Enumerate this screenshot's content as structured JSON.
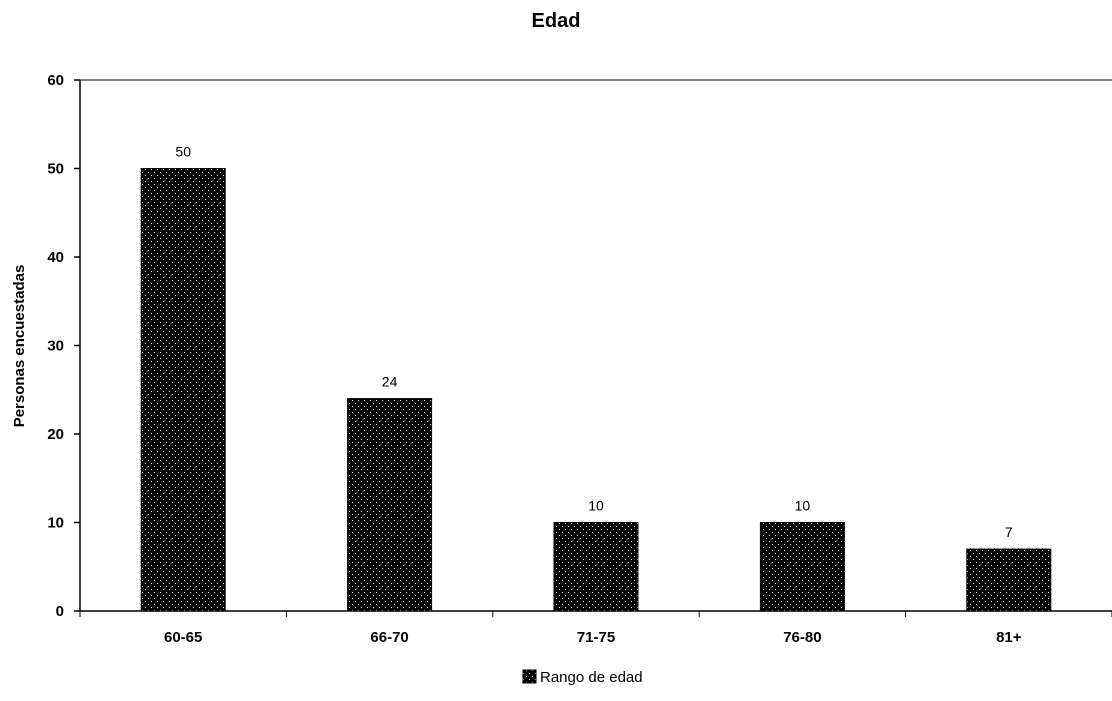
{
  "chart_data": {
    "type": "bar",
    "title": "Edad",
    "xlabel": "",
    "ylabel": "Personas encuestadas",
    "categories": [
      "60-65",
      "66-70",
      "71-75",
      "76-80",
      "81+"
    ],
    "series": [
      {
        "name": "Rango de edad",
        "values": [
          50,
          24,
          10,
          10,
          7
        ]
      }
    ],
    "ylim": [
      0,
      60
    ],
    "yticks": [
      0,
      10,
      20,
      30,
      40,
      50,
      60
    ],
    "grid": false,
    "legend_position": "bottom",
    "colors": {
      "bar_fill": "#000000",
      "bar_dots": "#ffffff",
      "axis": "#000000"
    }
  }
}
